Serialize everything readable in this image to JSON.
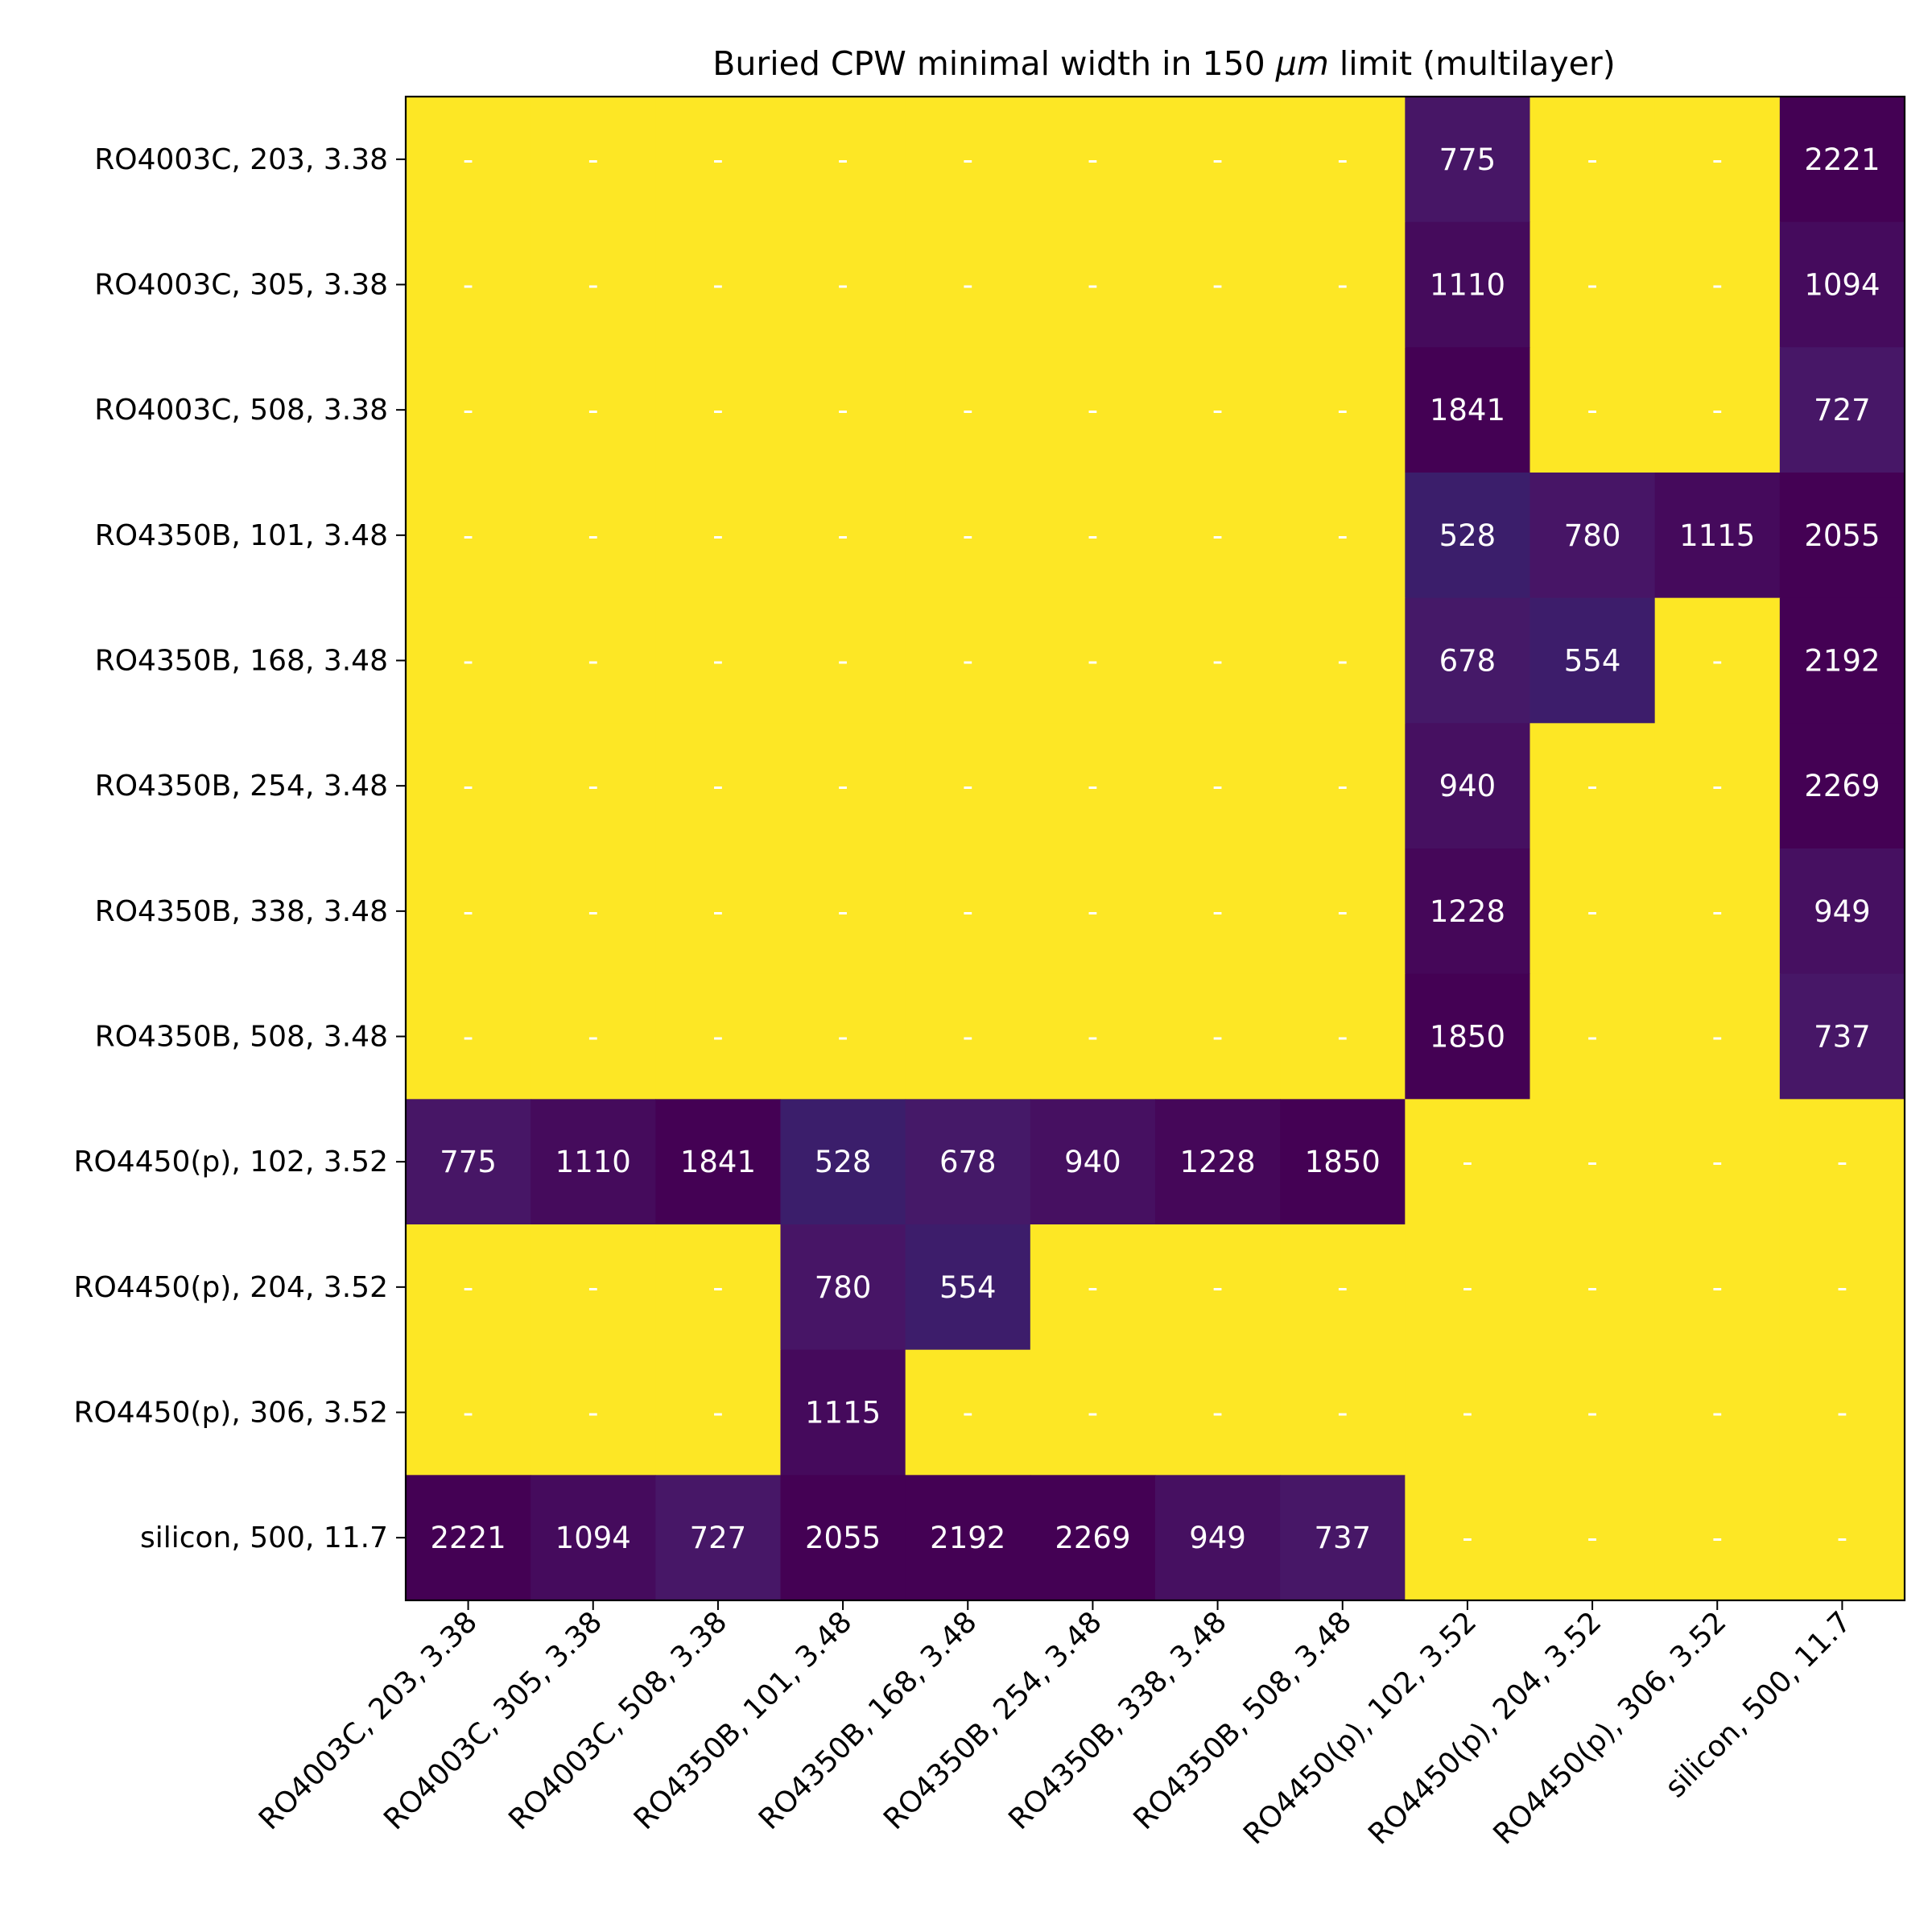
{
  "chart_data": {
    "type": "heatmap",
    "title_parts": [
      "Buried CPW minimal width in 150 ",
      "μm",
      " limit (multilayer)"
    ],
    "row_labels": [
      "RO4003C, 203, 3.38",
      "RO4003C, 305, 3.38",
      "RO4003C, 508, 3.38",
      "RO4350B, 101, 3.48",
      "RO4350B, 168, 3.48",
      "RO4350B, 254, 3.48",
      "RO4350B, 338, 3.48",
      "RO4350B, 508, 3.48",
      "RO4450(p), 102, 3.52",
      "RO4450(p), 204, 3.52",
      "RO4450(p), 306, 3.52",
      "silicon, 500, 11.7"
    ],
    "col_labels": [
      "RO4003C, 203, 3.38",
      "RO4003C, 305, 3.38",
      "RO4003C, 508, 3.38",
      "RO4350B, 101, 3.48",
      "RO4350B, 168, 3.48",
      "RO4350B, 254, 3.48",
      "RO4350B, 338, 3.48",
      "RO4350B, 508, 3.48",
      "RO4450(p), 102, 3.52",
      "RO4450(p), 204, 3.52",
      "RO4450(p), 306, 3.52",
      "silicon, 500, 11.7"
    ],
    "values": [
      [
        null,
        null,
        null,
        null,
        null,
        null,
        null,
        null,
        775,
        null,
        null,
        2221
      ],
      [
        null,
        null,
        null,
        null,
        null,
        null,
        null,
        null,
        1110,
        null,
        null,
        1094
      ],
      [
        null,
        null,
        null,
        null,
        null,
        null,
        null,
        null,
        1841,
        null,
        null,
        727
      ],
      [
        null,
        null,
        null,
        null,
        null,
        null,
        null,
        null,
        528,
        780,
        1115,
        2055
      ],
      [
        null,
        null,
        null,
        null,
        null,
        null,
        null,
        null,
        678,
        554,
        null,
        2192
      ],
      [
        null,
        null,
        null,
        null,
        null,
        null,
        null,
        null,
        940,
        null,
        null,
        2269
      ],
      [
        null,
        null,
        null,
        null,
        null,
        null,
        null,
        null,
        1228,
        null,
        null,
        949
      ],
      [
        null,
        null,
        null,
        null,
        null,
        null,
        null,
        null,
        1850,
        null,
        null,
        737
      ],
      [
        775,
        1110,
        1841,
        528,
        678,
        940,
        1228,
        1850,
        null,
        null,
        null,
        null
      ],
      [
        null,
        null,
        null,
        780,
        554,
        null,
        null,
        null,
        null,
        null,
        null,
        null
      ],
      [
        null,
        null,
        null,
        1115,
        null,
        null,
        null,
        null,
        null,
        null,
        null,
        null
      ],
      [
        2221,
        1094,
        727,
        2055,
        2192,
        2269,
        949,
        737,
        null,
        null,
        null,
        null
      ]
    ],
    "missing_label": "-",
    "colormap": "viridis",
    "colors": {
      "missing": "#fde725",
      "low": "#3b1e6b",
      "mid": "#471868",
      "high": "#440154",
      "cell_text": "#ffffff",
      "axes": "#000000"
    },
    "grid": false,
    "colorbar": false
  }
}
